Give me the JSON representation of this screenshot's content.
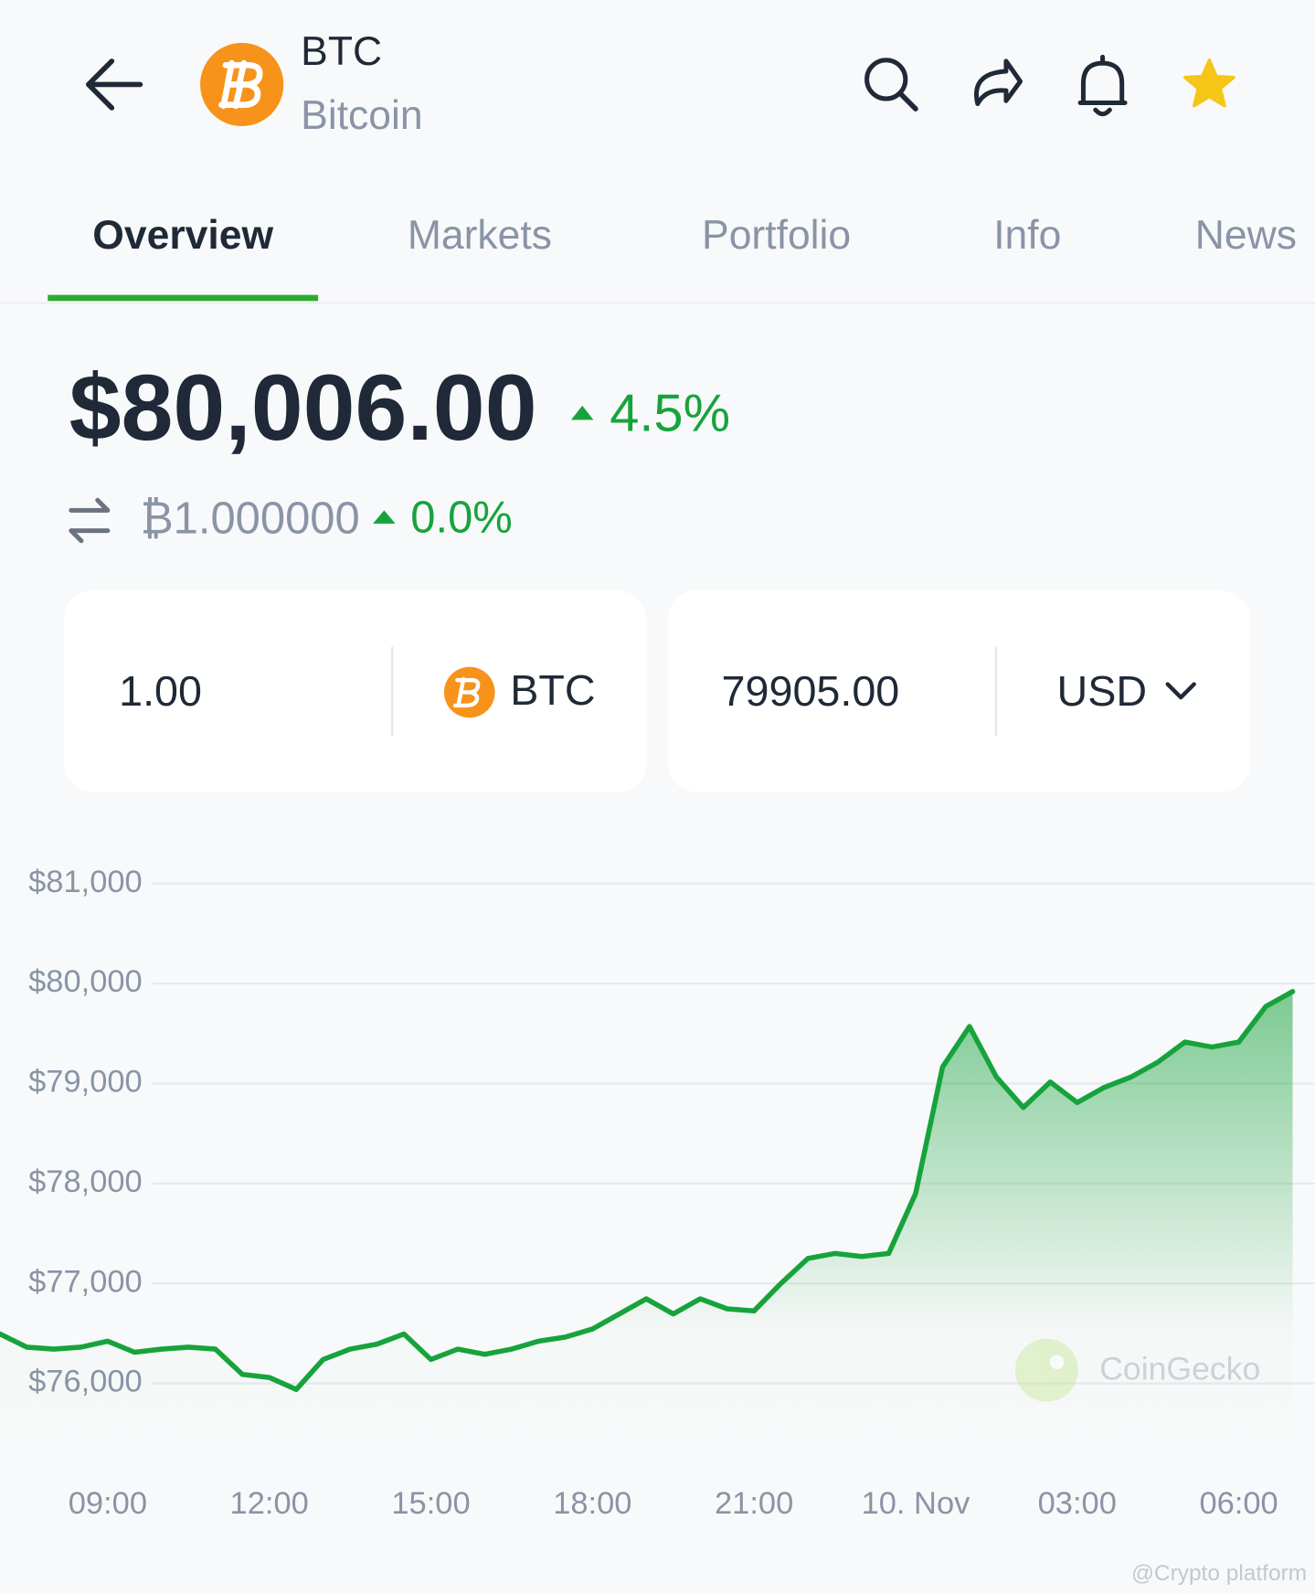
{
  "header": {
    "symbol": "BTC",
    "name": "Bitcoin"
  },
  "tabs": [
    "Overview",
    "Markets",
    "Portfolio",
    "Info",
    "News"
  ],
  "price": {
    "value": "$80,006.00",
    "change": "4.5%"
  },
  "btc_price": {
    "value": "₿1.000000",
    "change": "0.0%"
  },
  "converter": {
    "amount": "1.00",
    "from": "BTC",
    "result": "79905.00",
    "to": "USD"
  },
  "chart_data": {
    "type": "area",
    "color": "#17a33c",
    "grid": true,
    "x": [
      "07:00",
      "07:30",
      "08:00",
      "08:30",
      "09:00",
      "09:30",
      "10:00",
      "10:30",
      "11:00",
      "11:30",
      "12:00",
      "12:30",
      "13:00",
      "13:30",
      "14:00",
      "14:30",
      "15:00",
      "15:30",
      "16:00",
      "16:30",
      "17:00",
      "17:30",
      "18:00",
      "18:30",
      "19:00",
      "19:30",
      "20:00",
      "20:30",
      "21:00",
      "21:30",
      "22:00",
      "22:30",
      "23:00",
      "23:30",
      "00:00",
      "00:30",
      "01:00",
      "01:30",
      "02:00",
      "02:30",
      "03:00",
      "03:30",
      "04:00",
      "04:30",
      "05:00",
      "05:30",
      "06:00",
      "06:30",
      "07:00"
    ],
    "values": [
      76495,
      76363,
      76343,
      76363,
      76423,
      76312,
      76343,
      76363,
      76343,
      76090,
      76060,
      75940,
      76240,
      76343,
      76393,
      76495,
      76240,
      76343,
      76292,
      76343,
      76423,
      76464,
      76545,
      76695,
      76847,
      76695,
      76847,
      76746,
      76726,
      77000,
      77250,
      77300,
      77270,
      77300,
      77900,
      79165,
      79570,
      79065,
      78760,
      79015,
      78810,
      78960,
      79065,
      79215,
      79415,
      79365,
      79415,
      79770,
      79920
    ],
    "ylim": [
      75400,
      81500
    ],
    "yticks": [
      {
        "value": 76000,
        "label": "$76,000"
      },
      {
        "value": 77000,
        "label": "$77,000"
      },
      {
        "value": 78000,
        "label": "$78,000"
      },
      {
        "value": 79000,
        "label": "$79,000"
      },
      {
        "value": 80000,
        "label": "$80,000"
      },
      {
        "value": 81000,
        "label": "$81,000"
      }
    ],
    "xticks": [
      "09:00",
      "12:00",
      "15:00",
      "18:00",
      "21:00",
      {
        "value": "00:00",
        "label": "10. Nov"
      },
      "03:00",
      "06:00"
    ]
  },
  "watermark": "CoinGecko",
  "credit": "@Crypto platform"
}
